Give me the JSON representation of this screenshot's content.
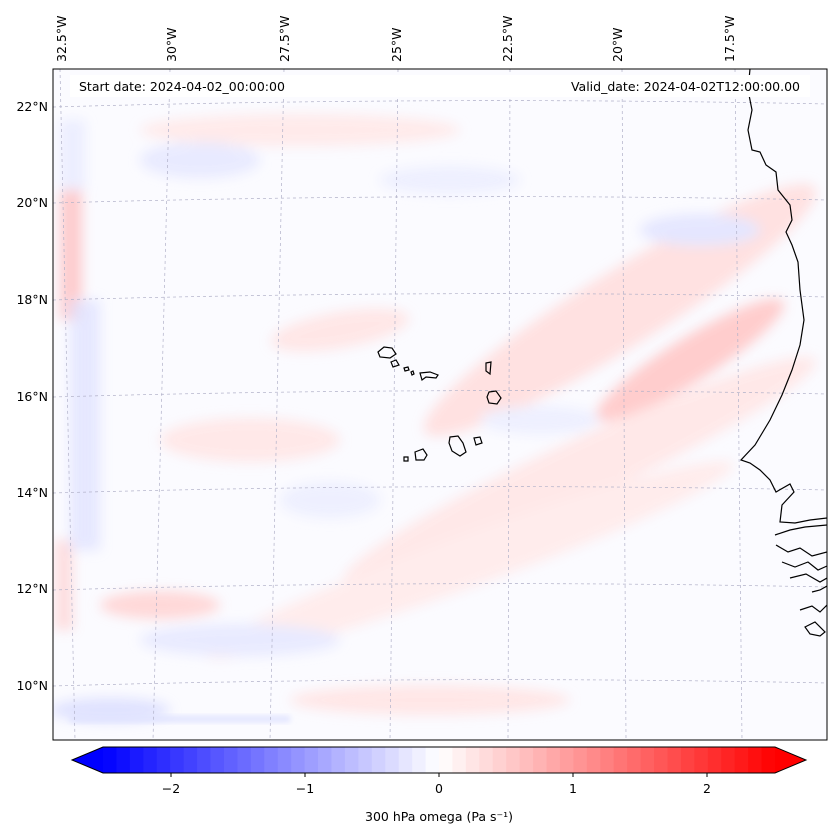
{
  "header": {
    "start_date": "Start date: 2024-04-02_00:00:00",
    "valid_date": "Valid_date: 2024-04-02T12:00:00.00"
  },
  "longitude_labels": [
    "32.5°W",
    "30°W",
    "27.5°W",
    "25°W",
    "22.5°W",
    "20°W",
    "17.5°W"
  ],
  "latitude_labels": [
    "22°N",
    "20°N",
    "18°N",
    "16°N",
    "14°N",
    "12°N",
    "10°N"
  ],
  "colorbar": {
    "label": "300 hPa omega (Pa s⁻¹)",
    "ticks": [
      "−2",
      "−1",
      "0",
      "1",
      "2"
    ],
    "range": [
      -2.7,
      2.5
    ],
    "colors": {
      "negative": "#0000ff",
      "zero": "#ffffff",
      "positive": "#ff0000"
    }
  },
  "colors": {
    "coastline": "#000000",
    "gridline": "#b0b0c8"
  }
}
